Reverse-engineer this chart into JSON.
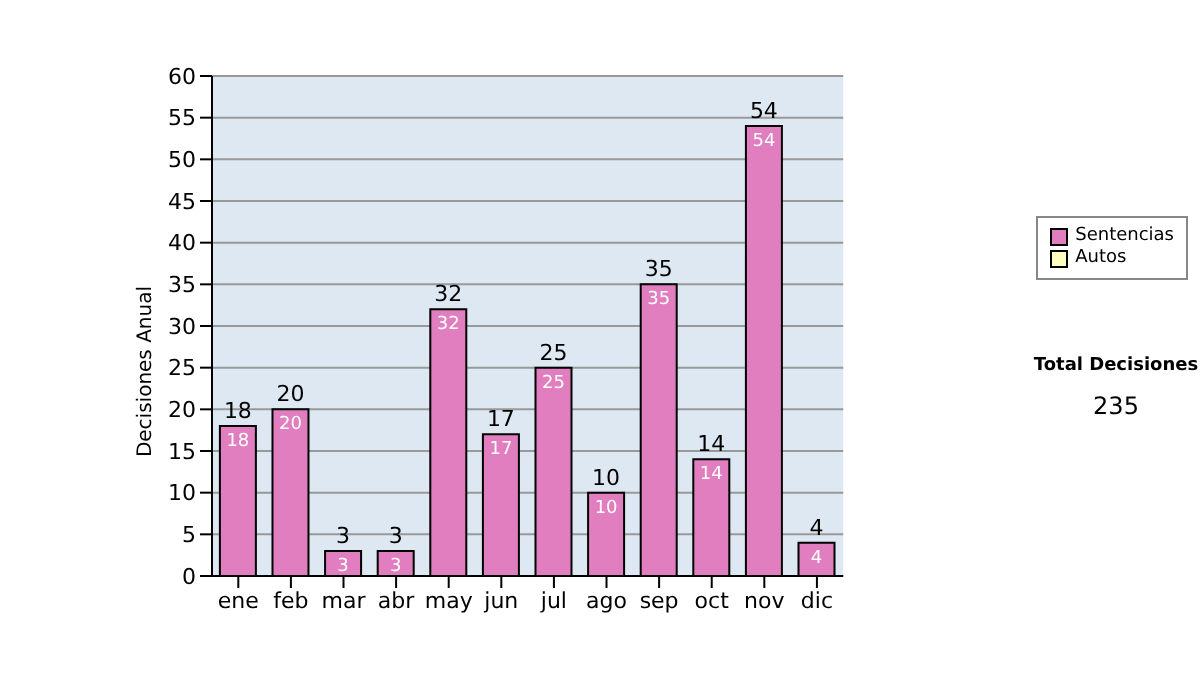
{
  "chart_data": {
    "type": "bar",
    "ylabel": "Decisiones Anual",
    "categories": [
      "ene",
      "feb",
      "mar",
      "abr",
      "may",
      "jun",
      "jul",
      "ago",
      "sep",
      "oct",
      "nov",
      "dic"
    ],
    "series": [
      {
        "name": "Sentencias",
        "color": "#e07ec0",
        "values": [
          18,
          20,
          3,
          3,
          32,
          17,
          25,
          10,
          35,
          14,
          54,
          4
        ]
      },
      {
        "name": "Autos",
        "color": "#ffffc0",
        "values": [
          null,
          null,
          null,
          null,
          null,
          null,
          null,
          null,
          null,
          null,
          null,
          null
        ]
      }
    ],
    "stacked": true,
    "data_labels": true,
    "totals": [
      "18",
      "20",
      "3",
      "3",
      "32",
      "17",
      "25",
      "10",
      "35",
      "14",
      "54",
      "4"
    ],
    "ylim": [
      0,
      60
    ],
    "yticks": [
      0,
      5,
      10,
      15,
      20,
      25,
      30,
      35,
      40,
      45,
      50,
      55,
      60
    ],
    "grid": "y",
    "legend": "right",
    "annotations": [
      "Total Decisiones",
      "235"
    ]
  }
}
